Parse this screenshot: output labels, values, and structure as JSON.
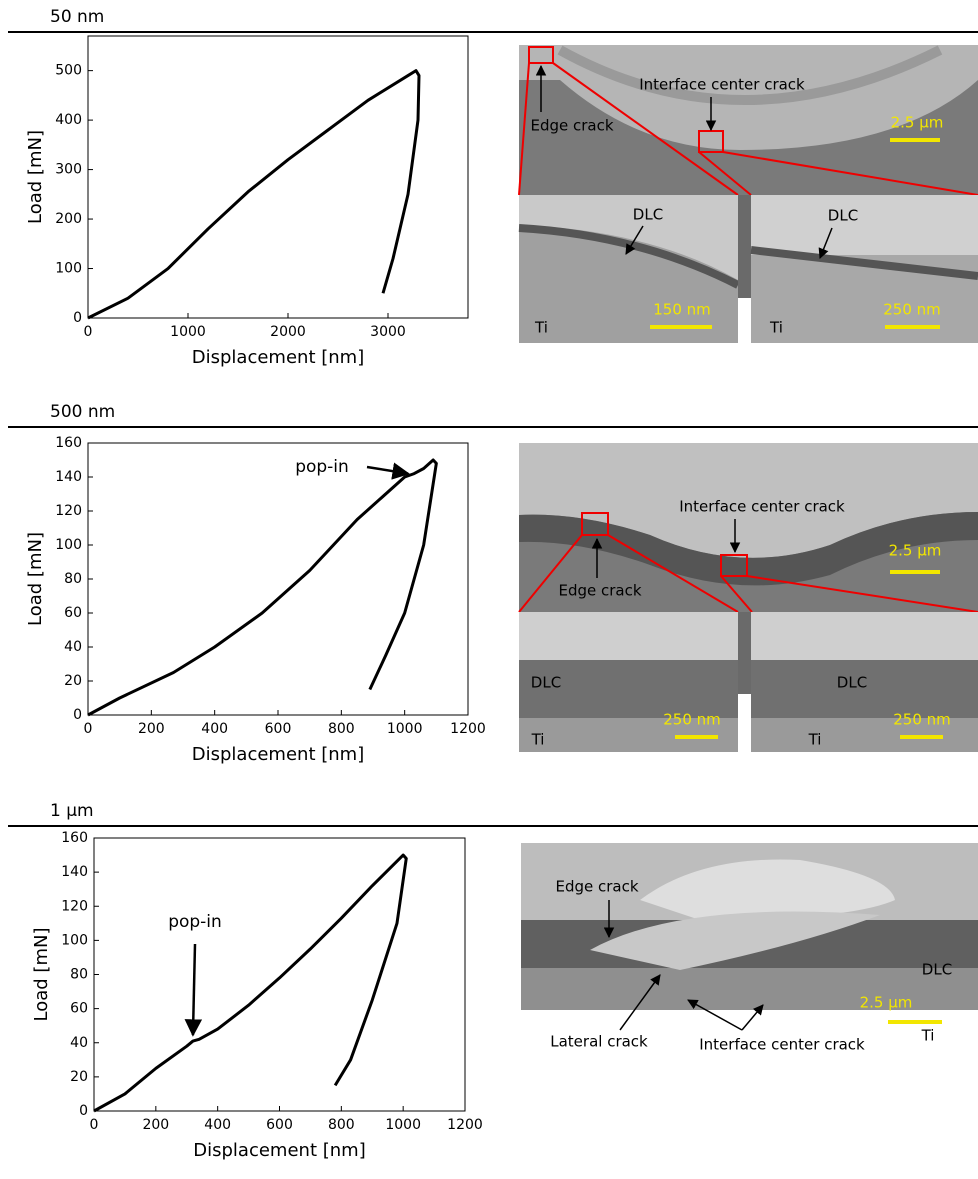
{
  "chart_data": [
    {
      "type": "line",
      "title": "50 nm",
      "xlabel": "Displacement [nm]",
      "ylabel": "Load [mN]",
      "x": [
        0,
        400,
        800,
        1200,
        1600,
        2000,
        2400,
        2800,
        3200,
        3280,
        3310,
        3300,
        3200,
        3050,
        2950
      ],
      "series": [
        {
          "color": "#000000",
          "values": [
            0,
            40,
            100,
            180,
            255,
            320,
            380,
            440,
            490,
            500,
            490,
            400,
            250,
            120,
            50
          ]
        }
      ],
      "xlim": [
        0,
        3800
      ],
      "ylim": [
        0,
        570
      ],
      "xticks": [
        0,
        1000,
        2000,
        3000
      ],
      "yticks": [
        0,
        100,
        200,
        300,
        400,
        500
      ],
      "annotations": []
    },
    {
      "type": "line",
      "title": "500 nm",
      "xlabel": "Displacement [nm]",
      "ylabel": "Load [mN]",
      "x": [
        0,
        100,
        270,
        400,
        550,
        700,
        850,
        1000,
        1030,
        1060,
        1090,
        1100,
        1060,
        1000,
        940,
        890
      ],
      "series": [
        {
          "color": "#000000",
          "values": [
            0,
            10,
            25,
            40,
            60,
            85,
            115,
            140,
            142,
            145,
            150,
            148,
            100,
            60,
            35,
            15
          ]
        }
      ],
      "xlim": [
        0,
        1200
      ],
      "ylim": [
        0,
        160
      ],
      "xticks": [
        0,
        200,
        400,
        600,
        800,
        1000,
        1200
      ],
      "yticks": [
        0,
        20,
        40,
        60,
        80,
        100,
        120,
        140,
        160
      ],
      "annotations": [
        {
          "text": "pop-in",
          "x": 1030,
          "y": 142
        }
      ]
    },
    {
      "type": "line",
      "title": "1 µm",
      "xlabel": "Displacement [nm]",
      "ylabel": "Load [mN]",
      "x": [
        0,
        100,
        200,
        300,
        320,
        340,
        400,
        500,
        600,
        700,
        800,
        900,
        1000,
        1010,
        980,
        900,
        830,
        780
      ],
      "series": [
        {
          "color": "#000000",
          "values": [
            0,
            10,
            25,
            38,
            41,
            42,
            48,
            62,
            78,
            95,
            113,
            132,
            150,
            148,
            110,
            65,
            30,
            15
          ]
        }
      ],
      "xlim": [
        0,
        1200
      ],
      "ylim": [
        0,
        160
      ],
      "xticks": [
        0,
        200,
        400,
        600,
        800,
        1000,
        1200
      ],
      "yticks": [
        0,
        20,
        40,
        60,
        80,
        100,
        120,
        140,
        160
      ],
      "annotations": [
        {
          "text": "pop-in",
          "x": 320,
          "y": 41
        }
      ]
    }
  ],
  "images": [
    {
      "labels": [
        "Edge crack",
        "Interface center crack",
        "2.5 µm",
        "DLC",
        "150 nm",
        "Ti",
        "DLC",
        "250 nm",
        "Ti"
      ]
    },
    {
      "labels": [
        "Interface center crack",
        "Edge crack",
        "2.5 µm",
        "DLC",
        "250 nm",
        "Ti",
        "DLC",
        "250 nm",
        "Ti"
      ]
    },
    {
      "labels": [
        "Edge crack",
        "DLC",
        "Lateral crack",
        "Interface center crack",
        "Ti",
        "2.5 µm"
      ]
    }
  ]
}
